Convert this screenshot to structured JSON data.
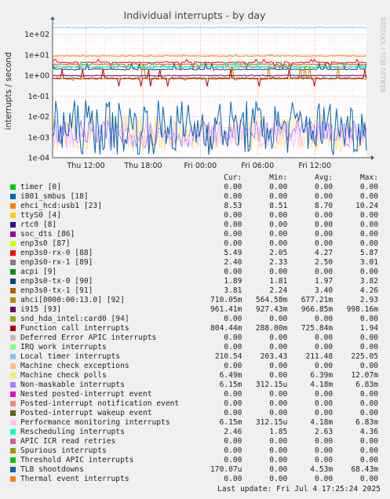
{
  "chart_data": {
    "type": "line",
    "title": "Individual interrupts - by day",
    "ylabel": "interrupts / second",
    "yscale": "log",
    "ylim": [
      0.0001,
      300
    ],
    "ytick_labels": [
      "1e-04",
      "1e-03",
      "1e-02",
      "1e-01",
      "1e+00",
      "1e+01",
      "1e+02"
    ],
    "xlim": [
      "Thu 08:30",
      "Fri 17:25"
    ],
    "xtick_labels": [
      "Thu 12:00",
      "Thu 18:00",
      "Fri 00:00",
      "Fri 06:00",
      "Fri 12:00"
    ],
    "grid": true,
    "side_label": "RRDTOOL / TOBI OETIKER",
    "columns": [
      "Cur:",
      "Min:",
      "Avg:",
      "Max:"
    ],
    "series": [
      {
        "name": "timer [0]",
        "color": "#00cc00",
        "cur": "0.00",
        "min": "0.00",
        "avg": "0.00",
        "max": "0.00"
      },
      {
        "name": "i801_smbus [18]",
        "color": "#0066b3",
        "cur": "0.00",
        "min": "0.00",
        "avg": "0.00",
        "max": "0.00"
      },
      {
        "name": "ehci_hcd:usb1 [23]",
        "color": "#ff8000",
        "cur": "8.53",
        "min": "8.51",
        "avg": "8.70",
        "max": "10.24"
      },
      {
        "name": "ttyS0 [4]",
        "color": "#ffcc00",
        "cur": "0.00",
        "min": "0.00",
        "avg": "0.00",
        "max": "0.00"
      },
      {
        "name": "rtc0 [8]",
        "color": "#330099",
        "cur": "0.00",
        "min": "0.00",
        "avg": "0.00",
        "max": "0.00"
      },
      {
        "name": "soc_dts [86]",
        "color": "#990099",
        "cur": "0.00",
        "min": "0.00",
        "avg": "0.00",
        "max": "0.00"
      },
      {
        "name": "enp3s0 [87]",
        "color": "#ccff00",
        "cur": "0.00",
        "min": "0.00",
        "avg": "0.00",
        "max": "0.00"
      },
      {
        "name": "enp3s0-rx-0 [88]",
        "color": "#ff0000",
        "cur": "5.49",
        "min": "2.05",
        "avg": "4.27",
        "max": "5.87"
      },
      {
        "name": "enp3s0-rx-1 [89]",
        "color": "#808080",
        "cur": "2.40",
        "min": "2.33",
        "avg": "2.50",
        "max": "3.01"
      },
      {
        "name": "acpi [9]",
        "color": "#008f00",
        "cur": "0.00",
        "min": "0.00",
        "avg": "0.00",
        "max": "0.00"
      },
      {
        "name": "enp3s0-tx-0 [90]",
        "color": "#00487d",
        "cur": "1.89",
        "min": "1.81",
        "avg": "1.97",
        "max": "3.82"
      },
      {
        "name": "enp3s0-tx-1 [91]",
        "color": "#b35a00",
        "cur": "3.81",
        "min": "2.24",
        "avg": "3.40",
        "max": "4.26"
      },
      {
        "name": "ahci[0000:00:13.0] [92]",
        "color": "#b38f00",
        "cur": "710.05m",
        "min": "564.58m",
        "avg": "677.21m",
        "max": "2.93"
      },
      {
        "name": "i915 [93]",
        "color": "#6b006b",
        "cur": "961.41m",
        "min": "927.43m",
        "avg": "966.85m",
        "max": "998.16m"
      },
      {
        "name": "snd_hda_intel:card0 [94]",
        "color": "#8fb300",
        "cur": "0.00",
        "min": "0.00",
        "avg": "0.00",
        "max": "0.00"
      },
      {
        "name": "Function call interrupts",
        "color": "#b30000",
        "cur": "804.44m",
        "min": "288.00m",
        "avg": "725.84m",
        "max": "1.94"
      },
      {
        "name": "Deferred Error APIC interrupts",
        "color": "#bebebe",
        "cur": "0.00",
        "min": "0.00",
        "avg": "0.00",
        "max": "0.00"
      },
      {
        "name": "IRQ work interrupts",
        "color": "#80ff80",
        "cur": "0.00",
        "min": "0.00",
        "avg": "0.00",
        "max": "0.00"
      },
      {
        "name": "Local timer interrupts",
        "color": "#80c9ff",
        "cur": "210.54",
        "min": "203.43",
        "avg": "211.48",
        "max": "225.05"
      },
      {
        "name": "Machine check exceptions",
        "color": "#ffc080",
        "cur": "0.00",
        "min": "0.00",
        "avg": "0.00",
        "max": "0.00"
      },
      {
        "name": "Machine check polls",
        "color": "#ffe680",
        "cur": "6.49m",
        "min": "0.00",
        "avg": "6.39m",
        "max": "12.07m"
      },
      {
        "name": "Non-maskable interrupts",
        "color": "#aa80ff",
        "cur": "6.15m",
        "min": "312.15u",
        "avg": "4.18m",
        "max": "6.83m"
      },
      {
        "name": "Nested posted-interrupt event",
        "color": "#ee00cc",
        "cur": "0.00",
        "min": "0.00",
        "avg": "0.00",
        "max": "0.00"
      },
      {
        "name": "Posted-interrupt notification event",
        "color": "#ff8080",
        "cur": "0.00",
        "min": "0.00",
        "avg": "0.00",
        "max": "0.00"
      },
      {
        "name": "Posted-interrupt wakeup event",
        "color": "#666600",
        "cur": "0.00",
        "min": "0.00",
        "avg": "0.00",
        "max": "0.00"
      },
      {
        "name": "Performance monitoring interrupts",
        "color": "#ffbfff",
        "cur": "6.15m",
        "min": "312.15u",
        "avg": "4.18m",
        "max": "6.83m"
      },
      {
        "name": "Rescheduling interrupts",
        "color": "#00ffcc",
        "cur": "2.46",
        "min": "1.85",
        "avg": "2.63",
        "max": "4.36"
      },
      {
        "name": "APIC ICR read retries",
        "color": "#cc6699",
        "cur": "0.00",
        "min": "0.00",
        "avg": "0.00",
        "max": "0.00"
      },
      {
        "name": "Spurious interrupts",
        "color": "#999900",
        "cur": "0.00",
        "min": "0.00",
        "avg": "0.00",
        "max": "0.00"
      },
      {
        "name": "Threshold APIC interrupts",
        "color": "#00cc00",
        "cur": "0.00",
        "min": "0.00",
        "avg": "0.00",
        "max": "0.00"
      },
      {
        "name": "TLB shootdowns",
        "color": "#0066b3",
        "cur": "170.07u",
        "min": "0.00",
        "avg": "4.53m",
        "max": "68.43m"
      },
      {
        "name": "Thermal event interrupts",
        "color": "#ff8000",
        "cur": "0.00",
        "min": "0.00",
        "avg": "0.00",
        "max": "0.00"
      }
    ]
  },
  "footer": {
    "last_update": "Last update: Fri Jul  4 17:25:24 2025"
  }
}
